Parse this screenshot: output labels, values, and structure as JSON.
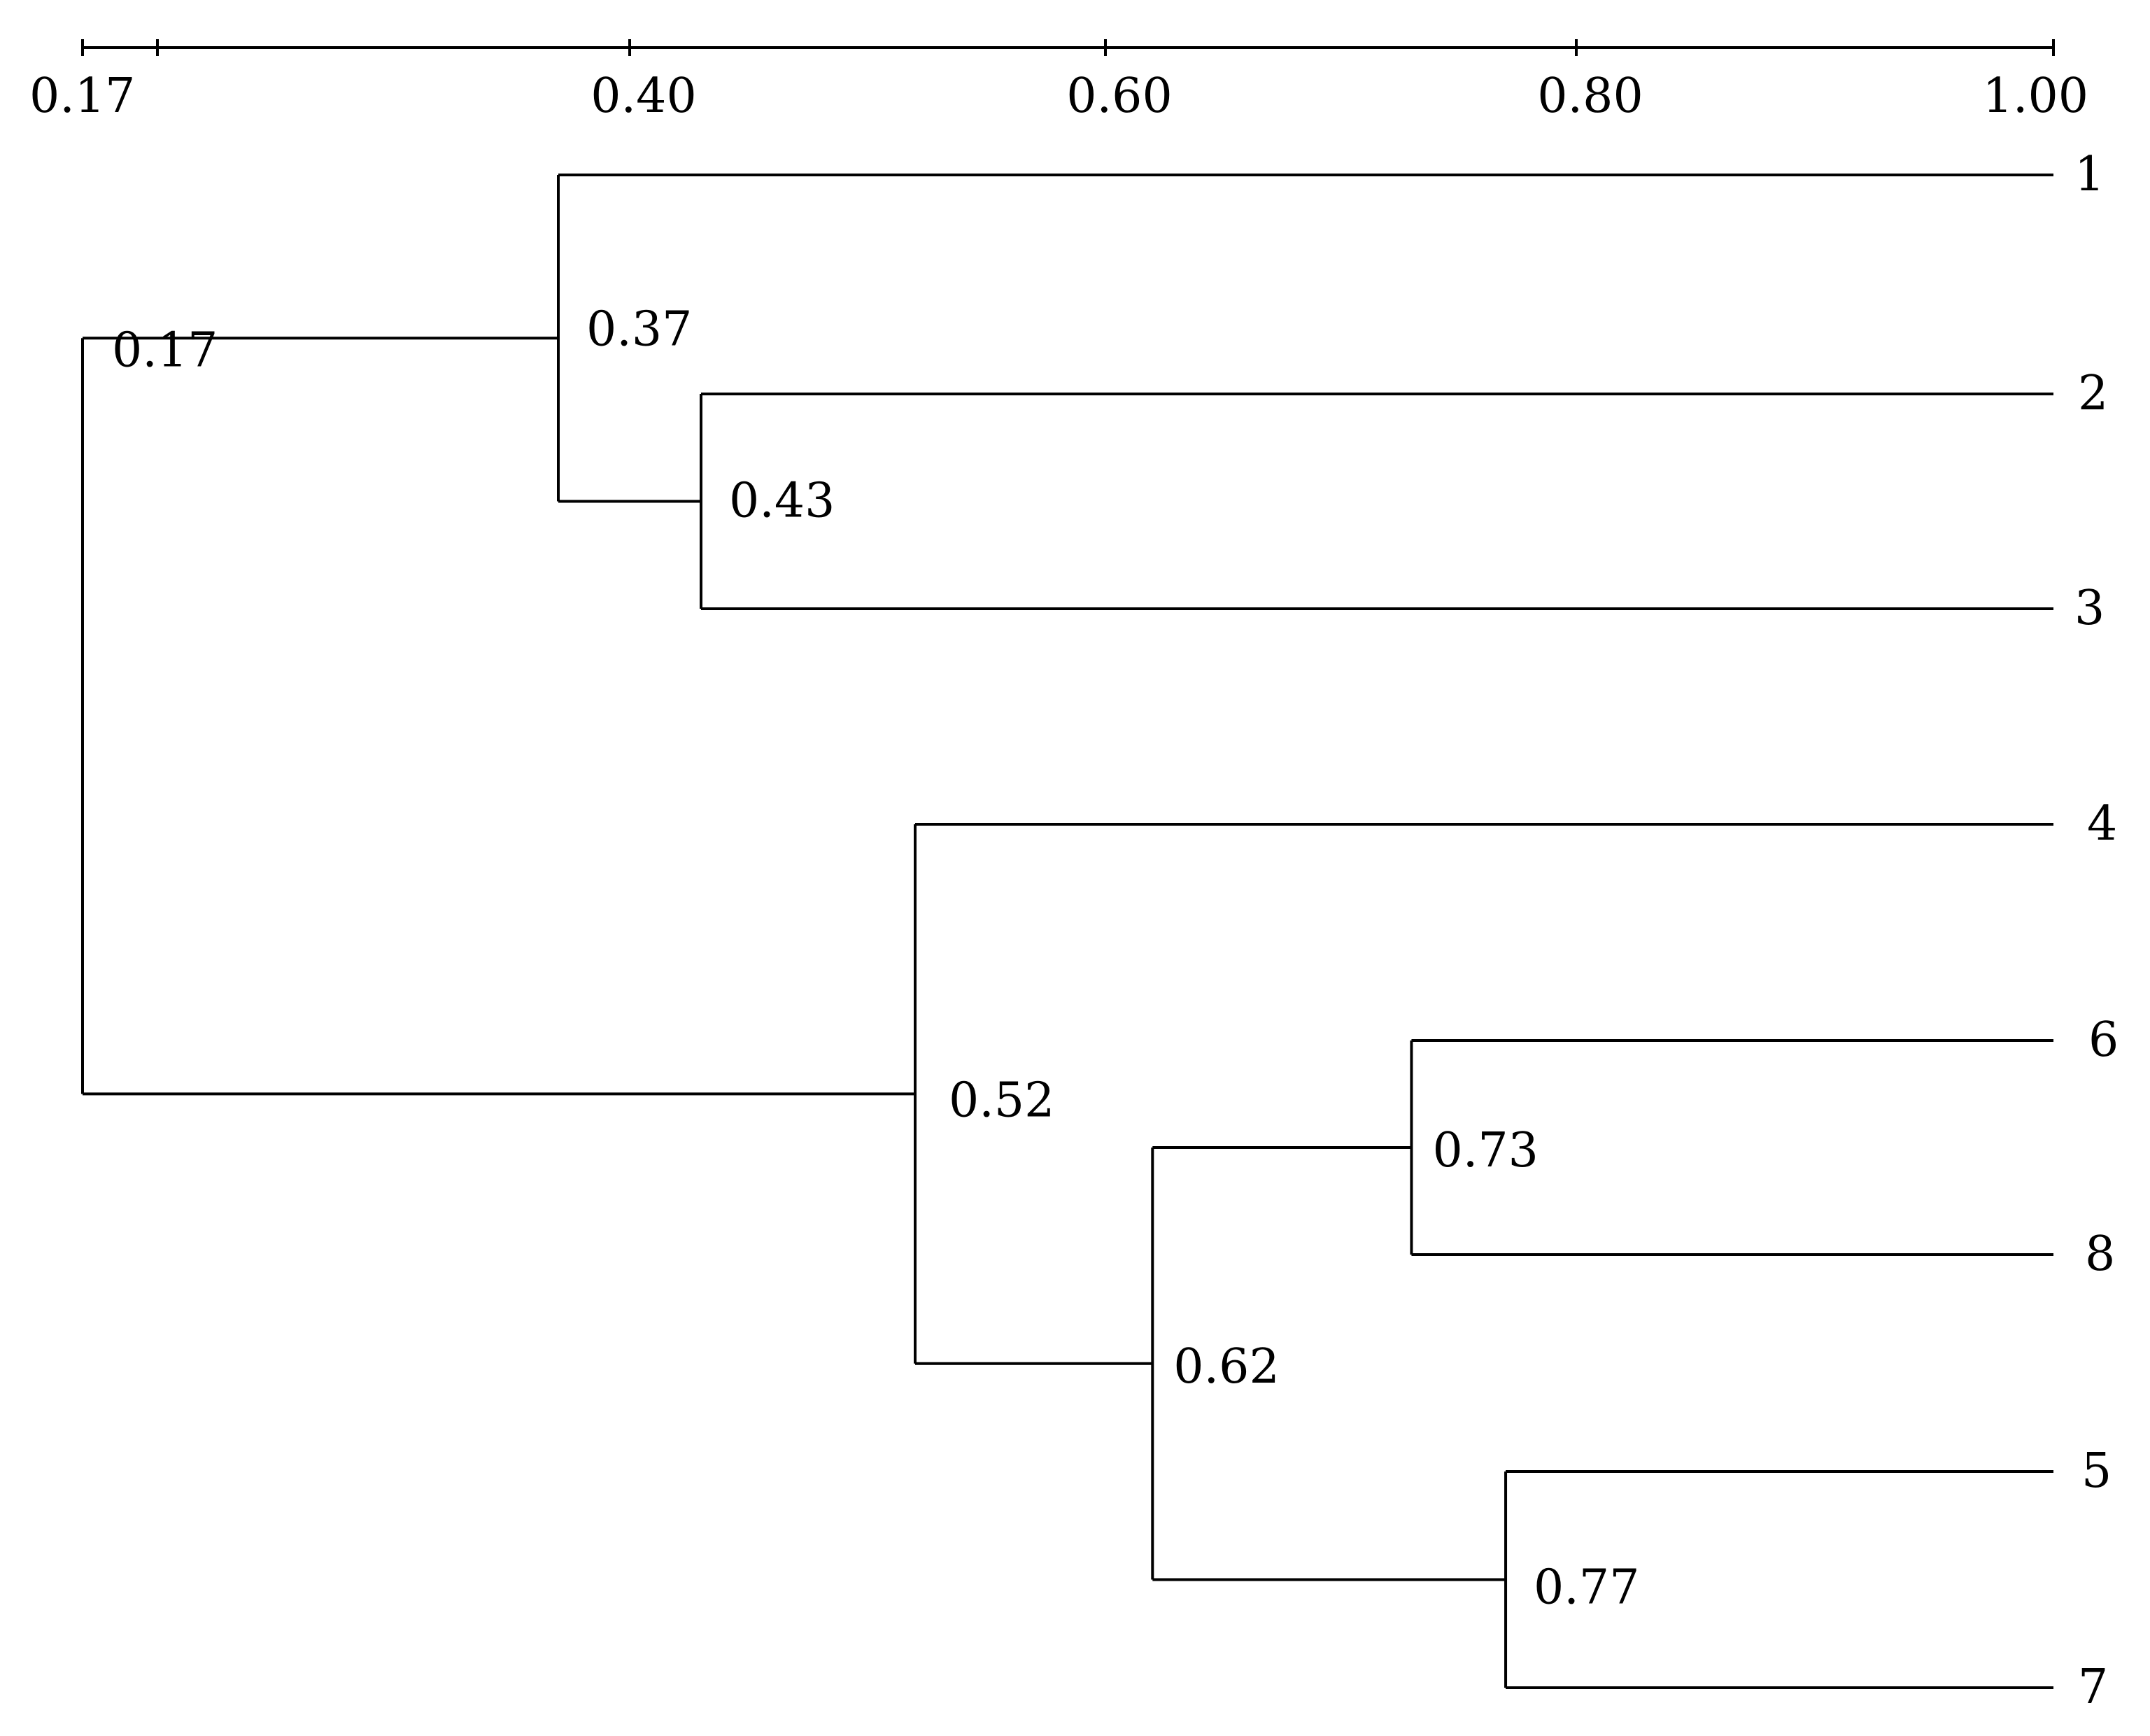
{
  "chart_data": {
    "type": "dendrogram",
    "axis": {
      "ticks": [
        "0.17",
        "0.40",
        "0.60",
        "0.80",
        "1.00"
      ],
      "range": [
        0.17,
        1.0
      ]
    },
    "leaves": [
      "1",
      "2",
      "3",
      "4",
      "6",
      "8",
      "5",
      "7"
    ],
    "merges": [
      {
        "label": "0.43",
        "value": 0.43,
        "children": [
          "3",
          "2"
        ]
      },
      {
        "label": "0.37",
        "value": 0.37,
        "children": [
          "1",
          "0.43"
        ]
      },
      {
        "label": "0.73",
        "value": 0.73,
        "children": [
          "6",
          "8"
        ]
      },
      {
        "label": "0.77",
        "value": 0.77,
        "children": [
          "5",
          "7"
        ]
      },
      {
        "label": "0.62",
        "value": 0.62,
        "children": [
          "0.73",
          "0.77"
        ]
      },
      {
        "label": "0.52",
        "value": 0.52,
        "children": [
          "4",
          "0.62"
        ]
      },
      {
        "label": "0.17",
        "value": 0.17,
        "children": [
          "0.37",
          "0.52"
        ]
      }
    ],
    "colors": {
      "line": "#000000",
      "background": "#ffffff"
    }
  }
}
